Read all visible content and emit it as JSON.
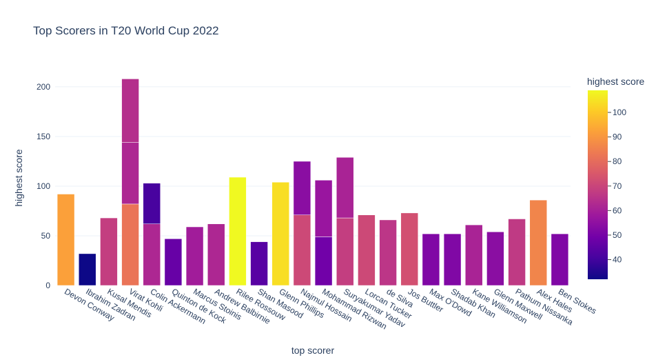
{
  "chart_data": {
    "type": "bar",
    "barmode": "stack",
    "title": "Top Scorers in T20 World Cup 2022",
    "xlabel": "top scorer",
    "ylabel": "highest score",
    "ylim": [
      0,
      218
    ],
    "yticks": [
      0,
      50,
      100,
      150,
      200
    ],
    "colorbar": {
      "title": "highest score",
      "range": [
        32,
        109
      ],
      "ticks": [
        40,
        50,
        60,
        70,
        80,
        90,
        100
      ]
    },
    "colorscale": [
      "#0d0887",
      "#46039f",
      "#7201a8",
      "#9c179e",
      "#bd3786",
      "#d8576b",
      "#ed7953",
      "#fb9f3a",
      "#fdca26",
      "#f0f921"
    ],
    "categories": [
      "Devon Conway",
      "Ibrahim Zadran",
      "Kusal Mendis",
      "Virat Kohli",
      "Colin Ackermann",
      "Quinton de Kock",
      "Marcus Stoinis",
      "Andrew Balbirnie",
      "Rilee Rossouw",
      "Shan Masood",
      "Glenn Phillips",
      "Najmul Hossain",
      "Mohammad Rizwan",
      "Suryakumar Yadav",
      "Lorcan Tucker",
      "de Silva",
      "Jos Buttler",
      "Max O'Dowd",
      "Shadab Khan",
      "Kane Williamson",
      "Glenn Maxwell",
      "Pathum Nissanka",
      "Alex Hales",
      "Ben Stokes"
    ],
    "stacks": [
      [
        92
      ],
      [
        32
      ],
      [
        68
      ],
      [
        82,
        62,
        64
      ],
      [
        62,
        41
      ],
      [
        47
      ],
      [
        59
      ],
      [
        62
      ],
      [
        109
      ],
      [
        44
      ],
      [
        104
      ],
      [
        71,
        54
      ],
      [
        49,
        57
      ],
      [
        68,
        61
      ],
      [
        71
      ],
      [
        66
      ],
      [
        73
      ],
      [
        52
      ],
      [
        52
      ],
      [
        61
      ],
      [
        54
      ],
      [
        67
      ],
      [
        86
      ],
      [
        52
      ]
    ]
  }
}
